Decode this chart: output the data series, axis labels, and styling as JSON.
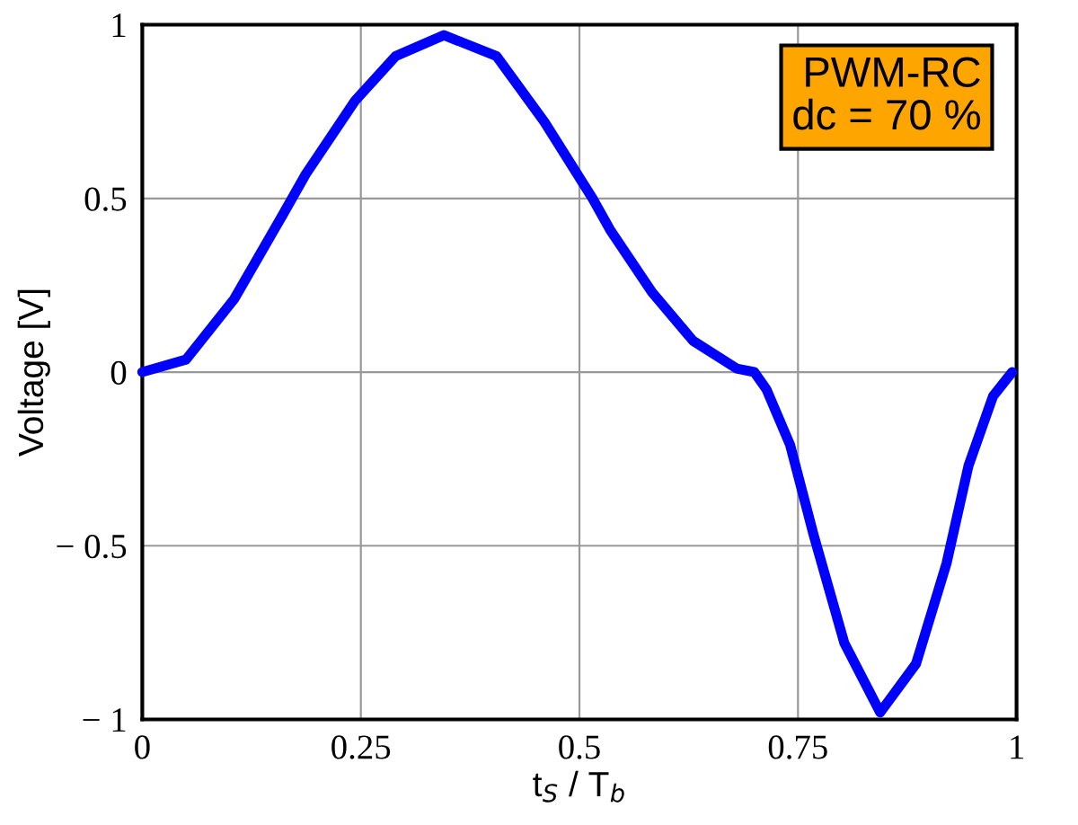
{
  "chart_data": {
    "type": "line",
    "xlabel": "t$_{S}$ / T$_{b}$",
    "ylabel": "Voltage [V]",
    "x": [
      0,
      0.05,
      0.105,
      0.16,
      0.187,
      0.243,
      0.29,
      0.345,
      0.405,
      0.46,
      0.515,
      0.535,
      0.583,
      0.63,
      0.68,
      0.7,
      0.714,
      0.741,
      0.768,
      0.803,
      0.844,
      0.885,
      0.92,
      0.945,
      0.973,
      0.995
    ],
    "series": [
      {
        "color": "#0000ff",
        "values": [
          0,
          0.036,
          0.21,
          0.45,
          0.57,
          0.78,
          0.91,
          0.97,
          0.91,
          0.72,
          0.5,
          0.41,
          0.23,
          0.09,
          0.01,
          0,
          -0.05,
          -0.21,
          -0.47,
          -0.78,
          -0.98,
          -0.84,
          -0.55,
          -0.27,
          -0.07,
          0
        ]
      }
    ],
    "xlim": [
      0,
      1
    ],
    "ylim": [
      -1,
      1
    ],
    "xticks": [
      0,
      0.25,
      0.5,
      0.75,
      1
    ],
    "yticks": [
      {
        "value": -1,
        "label": "− 1"
      },
      {
        "value": -0.5,
        "label": "− 0.5"
      },
      0,
      0.5,
      1
    ],
    "grid": true,
    "marker": "none",
    "line_style": "solid",
    "annotations": [
      "PWM-RC\ndc = 70 %"
    ]
  }
}
